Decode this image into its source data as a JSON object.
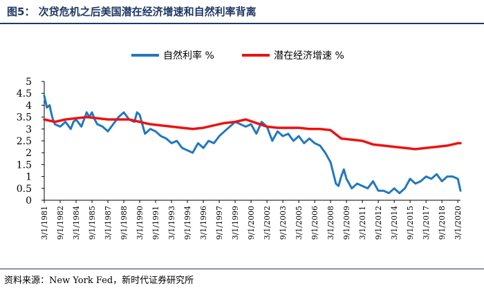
{
  "header": {
    "title": "图5：  次贷危机之后美国潜在经济增速和自然利率背离"
  },
  "footer": {
    "source": "资料来源：New York Fed，新时代证券研究所"
  },
  "colors": {
    "title": "#1f3864",
    "series_blue": "#1f77c4",
    "series_red": "#ee1111"
  },
  "chart_data": {
    "type": "line",
    "ylim": [
      0,
      5
    ],
    "yticks": [
      "0",
      "0.5",
      "1",
      "1.5",
      "2",
      "2.5",
      "3",
      "3.5",
      "4",
      "4.5",
      "5"
    ],
    "xtick_labels": [
      "3/1/1981",
      "9/1/1982",
      "3/1/1984",
      "9/1/1985",
      "3/1/1987",
      "9/1/1988",
      "3/1/1990",
      "9/1/1991",
      "3/1/1993",
      "9/1/1994",
      "3/1/1996",
      "9/1/1997",
      "3/1/1999",
      "9/1/2000",
      "3/1/2002",
      "9/1/2003",
      "3/1/2005",
      "9/1/2006",
      "3/1/2008",
      "9/1/2009",
      "3/1/2011",
      "9/1/2012",
      "3/1/2014",
      "9/1/2015",
      "3/1/2017",
      "9/1/2018",
      "3/1/2020"
    ],
    "legend_position": "top-center",
    "grid": false,
    "series": [
      {
        "name": "自然利率 %",
        "x": [
          1981.0,
          1981.25,
          1981.5,
          1981.75,
          1982.0,
          1982.5,
          1983.0,
          1983.5,
          1983.75,
          1984.0,
          1984.5,
          1985.0,
          1985.25,
          1985.5,
          1985.75,
          1986.0,
          1986.5,
          1987.0,
          1987.5,
          1988.0,
          1988.5,
          1989.0,
          1989.5,
          1989.75,
          1990.0,
          1990.5,
          1991.0,
          1991.5,
          1992.0,
          1992.5,
          1993.0,
          1993.5,
          1994.0,
          1994.5,
          1995.0,
          1995.5,
          1996.0,
          1996.5,
          1997.0,
          1997.5,
          1998.0,
          1998.5,
          1999.0,
          1999.5,
          2000.0,
          2000.5,
          2001.0,
          2001.5,
          2002.0,
          2002.5,
          2003.0,
          2003.5,
          2004.0,
          2004.5,
          2005.0,
          2005.5,
          2006.0,
          2006.5,
          2007.0,
          2007.5,
          2008.0,
          2008.5,
          2008.75,
          2009.0,
          2009.25,
          2009.5,
          2009.75,
          2010.0,
          2010.5,
          2011.0,
          2011.5,
          2012.0,
          2012.5,
          2013.0,
          2013.5,
          2014.0,
          2014.5,
          2015.0,
          2015.5,
          2016.0,
          2016.5,
          2017.0,
          2017.5,
          2018.0,
          2018.5,
          2019.0,
          2019.5,
          2020.0,
          2020.25
        ],
        "values": [
          4.4,
          3.9,
          4.0,
          3.5,
          3.2,
          3.1,
          3.3,
          3.0,
          3.3,
          3.4,
          3.1,
          3.7,
          3.5,
          3.7,
          3.4,
          3.2,
          3.1,
          2.9,
          3.2,
          3.5,
          3.7,
          3.4,
          3.3,
          3.7,
          3.6,
          2.8,
          3.0,
          2.9,
          2.7,
          2.6,
          2.4,
          2.5,
          2.2,
          2.1,
          2.0,
          2.4,
          2.2,
          2.5,
          2.4,
          2.7,
          2.9,
          3.1,
          3.3,
          3.2,
          3.1,
          3.2,
          2.8,
          3.3,
          3.1,
          2.5,
          2.9,
          2.7,
          2.8,
          2.5,
          2.7,
          2.4,
          2.6,
          2.4,
          2.3,
          2.0,
          1.6,
          0.7,
          0.6,
          1.0,
          1.3,
          0.9,
          0.7,
          0.5,
          0.7,
          0.6,
          0.5,
          0.8,
          0.4,
          0.4,
          0.3,
          0.5,
          0.3,
          0.5,
          0.9,
          0.7,
          0.8,
          1.0,
          0.9,
          1.1,
          0.8,
          1.0,
          1.0,
          0.9,
          0.4
        ]
      },
      {
        "name": "潜在经济增速 %",
        "x": [
          1981.0,
          1982.0,
          1983.0,
          1984.0,
          1985.0,
          1986.0,
          1987.0,
          1988.0,
          1989.0,
          1990.0,
          1991.0,
          1992.0,
          1993.0,
          1994.0,
          1995.0,
          1996.0,
          1997.0,
          1998.0,
          1999.0,
          2000.0,
          2001.0,
          2002.0,
          2003.0,
          2004.0,
          2005.0,
          2006.0,
          2007.0,
          2008.0,
          2009.0,
          2010.0,
          2011.0,
          2012.0,
          2013.0,
          2014.0,
          2015.0,
          2016.0,
          2017.0,
          2018.0,
          2019.0,
          2020.0,
          2020.25
        ],
        "values": [
          3.4,
          3.3,
          3.4,
          3.45,
          3.5,
          3.45,
          3.4,
          3.4,
          3.4,
          3.3,
          3.2,
          3.15,
          3.1,
          3.05,
          3.0,
          3.05,
          3.15,
          3.25,
          3.3,
          3.4,
          3.25,
          3.1,
          3.05,
          3.05,
          3.05,
          3.0,
          3.0,
          2.95,
          2.6,
          2.55,
          2.5,
          2.35,
          2.3,
          2.25,
          2.2,
          2.15,
          2.2,
          2.25,
          2.3,
          2.4,
          2.4
        ]
      }
    ]
  }
}
